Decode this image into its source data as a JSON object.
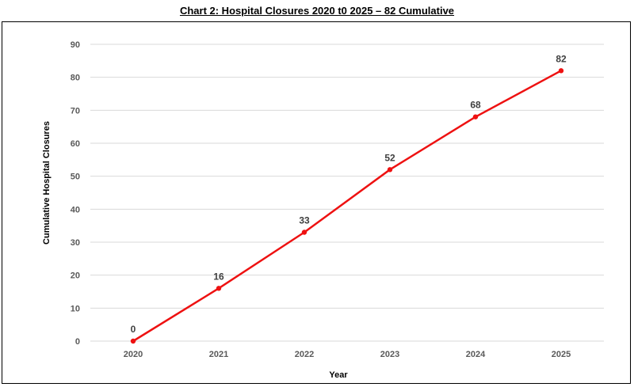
{
  "chart_data": {
    "type": "line",
    "title": "Chart 2: Hospital Closures 2020 t0 2025 – 82 Cumulative",
    "xlabel": "Year",
    "ylabel": "Cumulative Hospital Closures",
    "categories": [
      "2020",
      "2021",
      "2022",
      "2023",
      "2024",
      "2025"
    ],
    "series": [
      {
        "values": [
          0,
          16,
          33,
          52,
          68,
          82
        ]
      }
    ],
    "ylim": [
      0,
      90
    ],
    "yticks": [
      0,
      10,
      20,
      30,
      40,
      50,
      60,
      70,
      80,
      90
    ],
    "grid": true,
    "legend": "none",
    "line_color": "#ee1111",
    "grid_color": "#d9d9d9"
  }
}
